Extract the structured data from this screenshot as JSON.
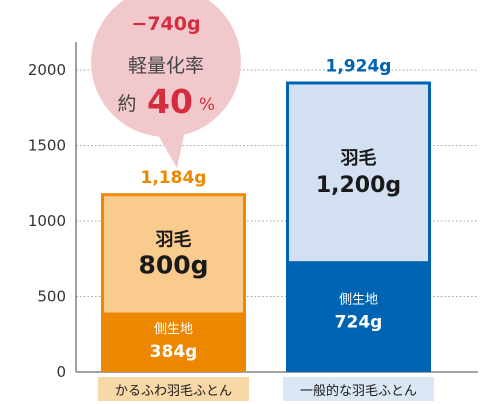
{
  "chart_data": {
    "type": "bar",
    "stacked": true,
    "categories": [
      "かるふわ羽毛ふとん",
      "一般的な羽毛ふとん"
    ],
    "ylim": [
      0,
      2000
    ],
    "yticks": [
      "0",
      "500",
      "1000",
      "1500",
      "2000"
    ],
    "grid": true,
    "series": [
      {
        "component": "側生地",
        "values": [
          384,
          724
        ],
        "labels": [
          "384g",
          "724g"
        ]
      },
      {
        "component": "羽毛",
        "values": [
          800,
          1200
        ],
        "labels": [
          "800g",
          "1,200g"
        ]
      }
    ],
    "totals": [
      "1,184g",
      "1,924g"
    ],
    "callout": {
      "diff": "−740g",
      "title": "軽量化率",
      "prefix": "約",
      "value": "40",
      "unit": "%"
    }
  },
  "colors": {
    "orange_dark": "#ee8700",
    "orange_light": "#f9cc8e",
    "blue_dark": "#0064b3",
    "blue_light": "#d3e0f2",
    "callout_bg": "#f1c9cd",
    "callout_text": "#d42d3d",
    "category_bg_a": "#f7d8a6",
    "category_bg_b": "#dbe7f4"
  }
}
